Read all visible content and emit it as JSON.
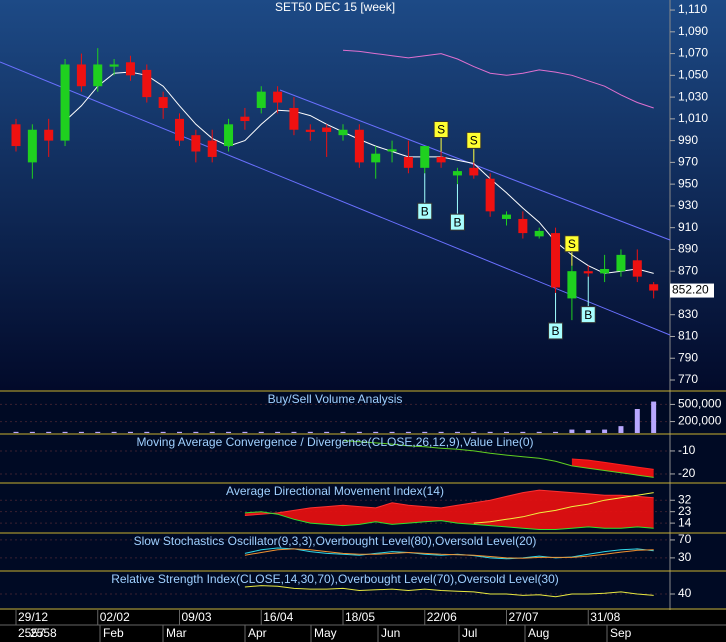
{
  "chart_data": {
    "type": "candlestick",
    "title": "SET50 DEC 15  [week]",
    "up_color": "#1fd01f",
    "down_color": "#ee1111",
    "ylim": [
      760.8,
      1117.4
    ],
    "yticks": [
      {
        "value": 1110,
        "label": "1,110"
      },
      {
        "value": 1090,
        "label": "1,090"
      },
      {
        "value": 1070,
        "label": "1,070"
      },
      {
        "value": 1050,
        "label": "1,050"
      },
      {
        "value": 1030,
        "label": "1,030"
      },
      {
        "value": 1010,
        "label": "1,010"
      },
      990,
      970,
      950,
      930,
      910,
      890,
      870,
      850,
      830,
      810,
      790,
      770
    ],
    "x_labels": [
      "29/12",
      null,
      null,
      null,
      null,
      "02/02",
      null,
      null,
      null,
      null,
      "09/03",
      null,
      null,
      null,
      null,
      "16/04",
      null,
      null,
      null,
      null,
      "18/05",
      null,
      null,
      null,
      null,
      "22/06",
      null,
      null,
      null,
      null,
      "27/07",
      null,
      null,
      null,
      null,
      "31/08",
      null,
      null,
      null,
      null
    ],
    "months": [
      "Feb",
      "Mar",
      "Apr",
      "May",
      "Jun",
      "Jul",
      "Aug",
      "Sep"
    ],
    "years": [
      "2557",
      "2558"
    ],
    "open": [
      1005,
      970,
      1000,
      990,
      1060,
      1040,
      1058,
      1062,
      1055,
      1030,
      1010,
      995,
      990,
      985,
      1012,
      1020,
      1035,
      1020,
      1000,
      1002,
      995,
      1000,
      970,
      980,
      975,
      965,
      975,
      958,
      965,
      955,
      918,
      918,
      902,
      905,
      845,
      870,
      868,
      870,
      880,
      858
    ],
    "high": [
      1010,
      1005,
      1010,
      1065,
      1070,
      1075,
      1065,
      1068,
      1060,
      1035,
      1015,
      1000,
      1000,
      1010,
      1020,
      1040,
      1040,
      1030,
      1005,
      1005,
      1005,
      1005,
      985,
      990,
      990,
      985,
      980,
      965,
      970,
      960,
      925,
      925,
      910,
      910,
      875,
      875,
      885,
      890,
      890,
      860
    ],
    "low": [
      980,
      955,
      975,
      985,
      1035,
      1035,
      1050,
      1045,
      1025,
      1010,
      985,
      970,
      970,
      980,
      1000,
      1015,
      1015,
      995,
      990,
      975,
      990,
      965,
      955,
      970,
      960,
      960,
      965,
      950,
      955,
      920,
      912,
      900,
      900,
      850,
      825,
      865,
      860,
      865,
      860,
      845
    ],
    "close": [
      985,
      1000,
      990,
      1060,
      1040,
      1060,
      1060,
      1050,
      1030,
      1020,
      990,
      980,
      975,
      1005,
      1008,
      1035,
      1025,
      1000,
      998,
      998,
      1000,
      970,
      978,
      982,
      965,
      985,
      970,
      962,
      958,
      925,
      922,
      905,
      907,
      855,
      870,
      868,
      872,
      885,
      865,
      852.2
    ],
    "last_price": {
      "value": 852.2,
      "label": "852.20"
    },
    "signals": [
      null,
      null,
      null,
      null,
      null,
      null,
      null,
      null,
      null,
      null,
      null,
      null,
      null,
      null,
      null,
      null,
      null,
      null,
      null,
      null,
      null,
      null,
      null,
      null,
      null,
      "B",
      "S",
      "B",
      "S",
      null,
      null,
      null,
      null,
      "B",
      "S",
      "B",
      null,
      null,
      null,
      null
    ],
    "lines": [
      {
        "color": "#ffffff",
        "values": [
          null,
          null,
          null,
          1008,
          1022,
          1040,
          1052,
          1053,
          1050,
          1040,
          1022,
          1005,
          992,
          985,
          990,
          1005,
          1018,
          1017,
          1013,
          1005,
          998,
          991,
          985,
          980,
          975,
          975,
          975,
          972,
          969,
          955,
          942,
          928,
          915,
          897,
          885,
          875,
          868,
          870,
          872,
          868
        ]
      },
      {
        "color": "#e070d0",
        "values": [
          null,
          null,
          null,
          null,
          null,
          null,
          null,
          null,
          null,
          null,
          null,
          null,
          null,
          null,
          null,
          null,
          null,
          null,
          null,
          null,
          1073,
          1072,
          1070,
          1068,
          1066,
          1068,
          1070,
          1065,
          1058,
          1052,
          1050,
          1052,
          1055,
          1053,
          1050,
          1045,
          1040,
          1032,
          1025,
          1020
        ]
      }
    ],
    "indicators": [
      {
        "title": "Buy/Sell Volume Analysis",
        "ylim": [
          0,
          700000
        ],
        "yticks": [
          {
            "value": 500000,
            "label": "500,000"
          },
          {
            "value": 200000,
            "label": "200,000"
          }
        ],
        "series": [
          {
            "style": "bar",
            "color": "#b8a8ff",
            "values": [
              20000,
              20000,
              20000,
              20000,
              20000,
              20000,
              20000,
              20000,
              20000,
              20000,
              20000,
              20000,
              20000,
              20000,
              20000,
              20000,
              20000,
              20000,
              20000,
              20000,
              20000,
              20000,
              20000,
              20000,
              20000,
              20000,
              20000,
              20000,
              20000,
              20000,
              20000,
              20000,
              20000,
              20000,
              60000,
              50000,
              60000,
              120000,
              420000,
              550000
            ]
          }
        ]
      },
      {
        "title": "Moving Average Convergence / Divergence(CLOSE,26,12,9),Value Line(0)",
        "ylim": [
          -23.5,
          -3.5
        ],
        "yticks": [
          -10,
          -20
        ],
        "fill": {
          "between": [
            0,
            1
          ],
          "color": "#ff1010"
        },
        "series": [
          {
            "style": "line",
            "color": "#60d020",
            "values": [
              null,
              null,
              null,
              null,
              null,
              null,
              null,
              null,
              null,
              null,
              null,
              null,
              null,
              null,
              null,
              null,
              null,
              null,
              null,
              null,
              -5.5,
              -6,
              -6.5,
              -7,
              -7.8,
              -8.2,
              -8.8,
              -9.3,
              -10,
              -11,
              -11.8,
              -12.5,
              -13.2,
              -14.5,
              -16.5,
              -17.5,
              -18.5,
              -19.5,
              -20.5,
              -21.5
            ]
          },
          {
            "style": "line",
            "color": "#ff2020",
            "values": [
              null,
              null,
              null,
              null,
              null,
              null,
              null,
              null,
              null,
              null,
              null,
              null,
              null,
              null,
              null,
              null,
              null,
              null,
              null,
              null,
              null,
              null,
              null,
              null,
              null,
              null,
              null,
              null,
              null,
              null,
              null,
              null,
              null,
              null,
              -13.5,
              -14,
              -15,
              -16,
              -17,
              -18
            ]
          }
        ]
      },
      {
        "title": "Average Directional Movement Index(14)",
        "ylim": [
          7,
          44
        ],
        "yticks": [
          32,
          23,
          14
        ],
        "fill": {
          "between": [
            0,
            1
          ],
          "color": "#ee1010"
        },
        "series": [
          {
            "style": "line",
            "color": "#ff3030",
            "values": [
              null,
              null,
              null,
              null,
              null,
              null,
              null,
              null,
              null,
              null,
              null,
              null,
              null,
              null,
              20,
              21,
              22,
              24,
              26,
              27,
              28,
              27,
              26,
              30,
              28,
              27,
              26,
              28,
              30,
              32,
              35,
              38,
              40,
              39,
              38,
              37,
              36,
              36,
              35,
              34
            ]
          },
          {
            "style": "line",
            "color": "#30e030",
            "values": [
              null,
              null,
              null,
              null,
              null,
              null,
              null,
              null,
              null,
              null,
              null,
              null,
              null,
              null,
              22,
              23,
              21,
              17,
              14,
              13,
              12,
              13,
              15,
              13,
              14,
              15,
              16,
              14,
              13,
              12,
              11,
              10,
              9,
              9,
              10,
              11,
              10,
              10,
              11,
              10
            ]
          },
          {
            "style": "line",
            "color": "#f0f040",
            "values": [
              null,
              null,
              null,
              null,
              null,
              null,
              null,
              null,
              null,
              null,
              null,
              null,
              null,
              null,
              null,
              null,
              null,
              null,
              null,
              null,
              null,
              null,
              null,
              null,
              null,
              null,
              null,
              null,
              14,
              15,
              17,
              19,
              22,
              24,
              27,
              29,
              32,
              34,
              36,
              38
            ]
          }
        ]
      },
      {
        "title": "Slow Stochastics Oscillator(9,3,3),Overbought Level(80),Oversold Level(20)",
        "ylim": [
          3,
          81
        ],
        "yticks": [
          70,
          30
        ],
        "series": [
          {
            "style": "line",
            "color": "#30d8e8",
            "values": [
              null,
              null,
              null,
              null,
              null,
              null,
              null,
              null,
              null,
              null,
              null,
              null,
              null,
              null,
              40,
              48,
              52,
              50,
              44,
              40,
              38,
              36,
              40,
              44,
              42,
              38,
              36,
              38,
              35,
              30,
              28,
              30,
              34,
              30,
              32,
              38,
              44,
              48,
              50,
              46
            ]
          },
          {
            "style": "line",
            "color": "#f09030",
            "values": [
              null,
              null,
              null,
              null,
              null,
              null,
              null,
              null,
              null,
              null,
              null,
              null,
              null,
              null,
              36,
              42,
              48,
              50,
              48,
              44,
              40,
              38,
              38,
              40,
              42,
              40,
              38,
              37,
              36,
              33,
              30,
              29,
              31,
              31,
              31,
              34,
              38,
              43,
              47,
              48
            ]
          }
        ]
      },
      {
        "title": "Relative Strength Index(CLOSE,14,30,70),Overbought Level(70),Oversold Level(30)",
        "ylim": [
          20,
          70
        ],
        "yticks": [
          40
        ],
        "series": [
          {
            "style": "line",
            "color": "#e8e840",
            "values": [
              null,
              null,
              null,
              null,
              null,
              null,
              null,
              null,
              null,
              null,
              null,
              null,
              null,
              null,
              50,
              52,
              51,
              48,
              47,
              47,
              48,
              45,
              46,
              47,
              45,
              47,
              45,
              44,
              43,
              40,
              40,
              38,
              39,
              36,
              40,
              40,
              41,
              43,
              40,
              38
            ]
          }
        ]
      }
    ]
  }
}
